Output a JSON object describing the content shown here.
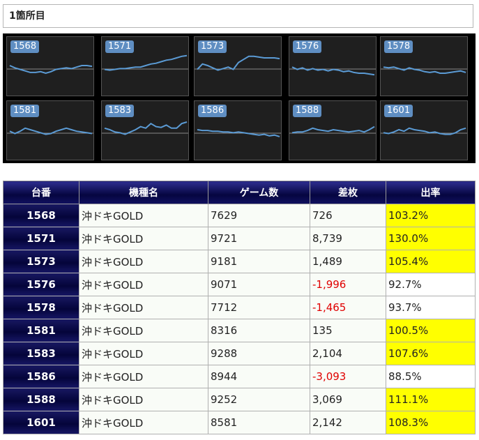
{
  "section_title": "1箇所目",
  "graphs": [
    {
      "label": "1568",
      "points": [
        50,
        47,
        45,
        43,
        41,
        41,
        42,
        40,
        42,
        45,
        46,
        47,
        46,
        48,
        50,
        50,
        49
      ]
    },
    {
      "label": "1571",
      "points": [
        45,
        44,
        45,
        46,
        46,
        47,
        48,
        48,
        50,
        52,
        53,
        55,
        57,
        58,
        60,
        62,
        63
      ]
    },
    {
      "label": "1573",
      "points": [
        45,
        52,
        50,
        47,
        44,
        46,
        48,
        45,
        54,
        58,
        62,
        62,
        61,
        60,
        60,
        60,
        59
      ]
    },
    {
      "label": "1576",
      "points": [
        48,
        45,
        47,
        44,
        46,
        44,
        45,
        43,
        45,
        44,
        42,
        43,
        41,
        40,
        40,
        39,
        38
      ]
    },
    {
      "label": "1578",
      "points": [
        48,
        47,
        48,
        46,
        44,
        47,
        45,
        44,
        42,
        41,
        42,
        40,
        40,
        41,
        42,
        43,
        41
      ]
    },
    {
      "label": "1581",
      "points": [
        48,
        45,
        48,
        52,
        50,
        48,
        46,
        44,
        45,
        48,
        50,
        52,
        50,
        48,
        47,
        46,
        45
      ]
    },
    {
      "label": "1583",
      "points": [
        52,
        50,
        47,
        46,
        44,
        47,
        50,
        54,
        52,
        58,
        54,
        53,
        56,
        52,
        52,
        58,
        60
      ]
    },
    {
      "label": "1586",
      "points": [
        50,
        49,
        49,
        48,
        48,
        47,
        47,
        46,
        47,
        46,
        45,
        44,
        43,
        44,
        42,
        43,
        41
      ]
    },
    {
      "label": "1588",
      "points": [
        46,
        47,
        47,
        49,
        52,
        50,
        49,
        48,
        50,
        49,
        48,
        47,
        48,
        49,
        47,
        50,
        54
      ]
    },
    {
      "label": "1601",
      "points": [
        46,
        45,
        47,
        50,
        48,
        52,
        50,
        49,
        48,
        46,
        47,
        45,
        44,
        44,
        46,
        50,
        52
      ]
    }
  ],
  "table": {
    "headers": [
      "台番",
      "機種名",
      "ゲーム数",
      "差枚",
      "出率"
    ],
    "rows": [
      {
        "num": "1568",
        "model": "沖ドキGOLD",
        "games": "7629",
        "diff": "726",
        "rate": "103.2%",
        "neg": false,
        "hi": true
      },
      {
        "num": "1571",
        "model": "沖ドキGOLD",
        "games": "9721",
        "diff": "8,739",
        "rate": "130.0%",
        "neg": false,
        "hi": true
      },
      {
        "num": "1573",
        "model": "沖ドキGOLD",
        "games": "9181",
        "diff": "1,489",
        "rate": "105.4%",
        "neg": false,
        "hi": true
      },
      {
        "num": "1576",
        "model": "沖ドキGOLD",
        "games": "9071",
        "diff": "-1,996",
        "rate": "92.7%",
        "neg": true,
        "hi": false
      },
      {
        "num": "1578",
        "model": "沖ドキGOLD",
        "games": "7712",
        "diff": "-1,465",
        "rate": "93.7%",
        "neg": true,
        "hi": false
      },
      {
        "num": "1581",
        "model": "沖ドキGOLD",
        "games": "8316",
        "diff": "135",
        "rate": "100.5%",
        "neg": false,
        "hi": true
      },
      {
        "num": "1583",
        "model": "沖ドキGOLD",
        "games": "9288",
        "diff": "2,104",
        "rate": "107.6%",
        "neg": false,
        "hi": true
      },
      {
        "num": "1586",
        "model": "沖ドキGOLD",
        "games": "8944",
        "diff": "-3,093",
        "rate": "88.5%",
        "neg": true,
        "hi": false
      },
      {
        "num": "1588",
        "model": "沖ドキGOLD",
        "games": "9252",
        "diff": "3,069",
        "rate": "111.1%",
        "neg": false,
        "hi": true
      },
      {
        "num": "1601",
        "model": "沖ドキGOLD",
        "games": "8581",
        "diff": "2,142",
        "rate": "108.3%",
        "neg": false,
        "hi": true
      }
    ]
  },
  "colors": {
    "graph_line": "#5b9bd5",
    "baseline": "#8a8a8a",
    "header_bg": "#0b0b4f",
    "negative": "#e00000",
    "rate_highlight": "#ffff00"
  }
}
